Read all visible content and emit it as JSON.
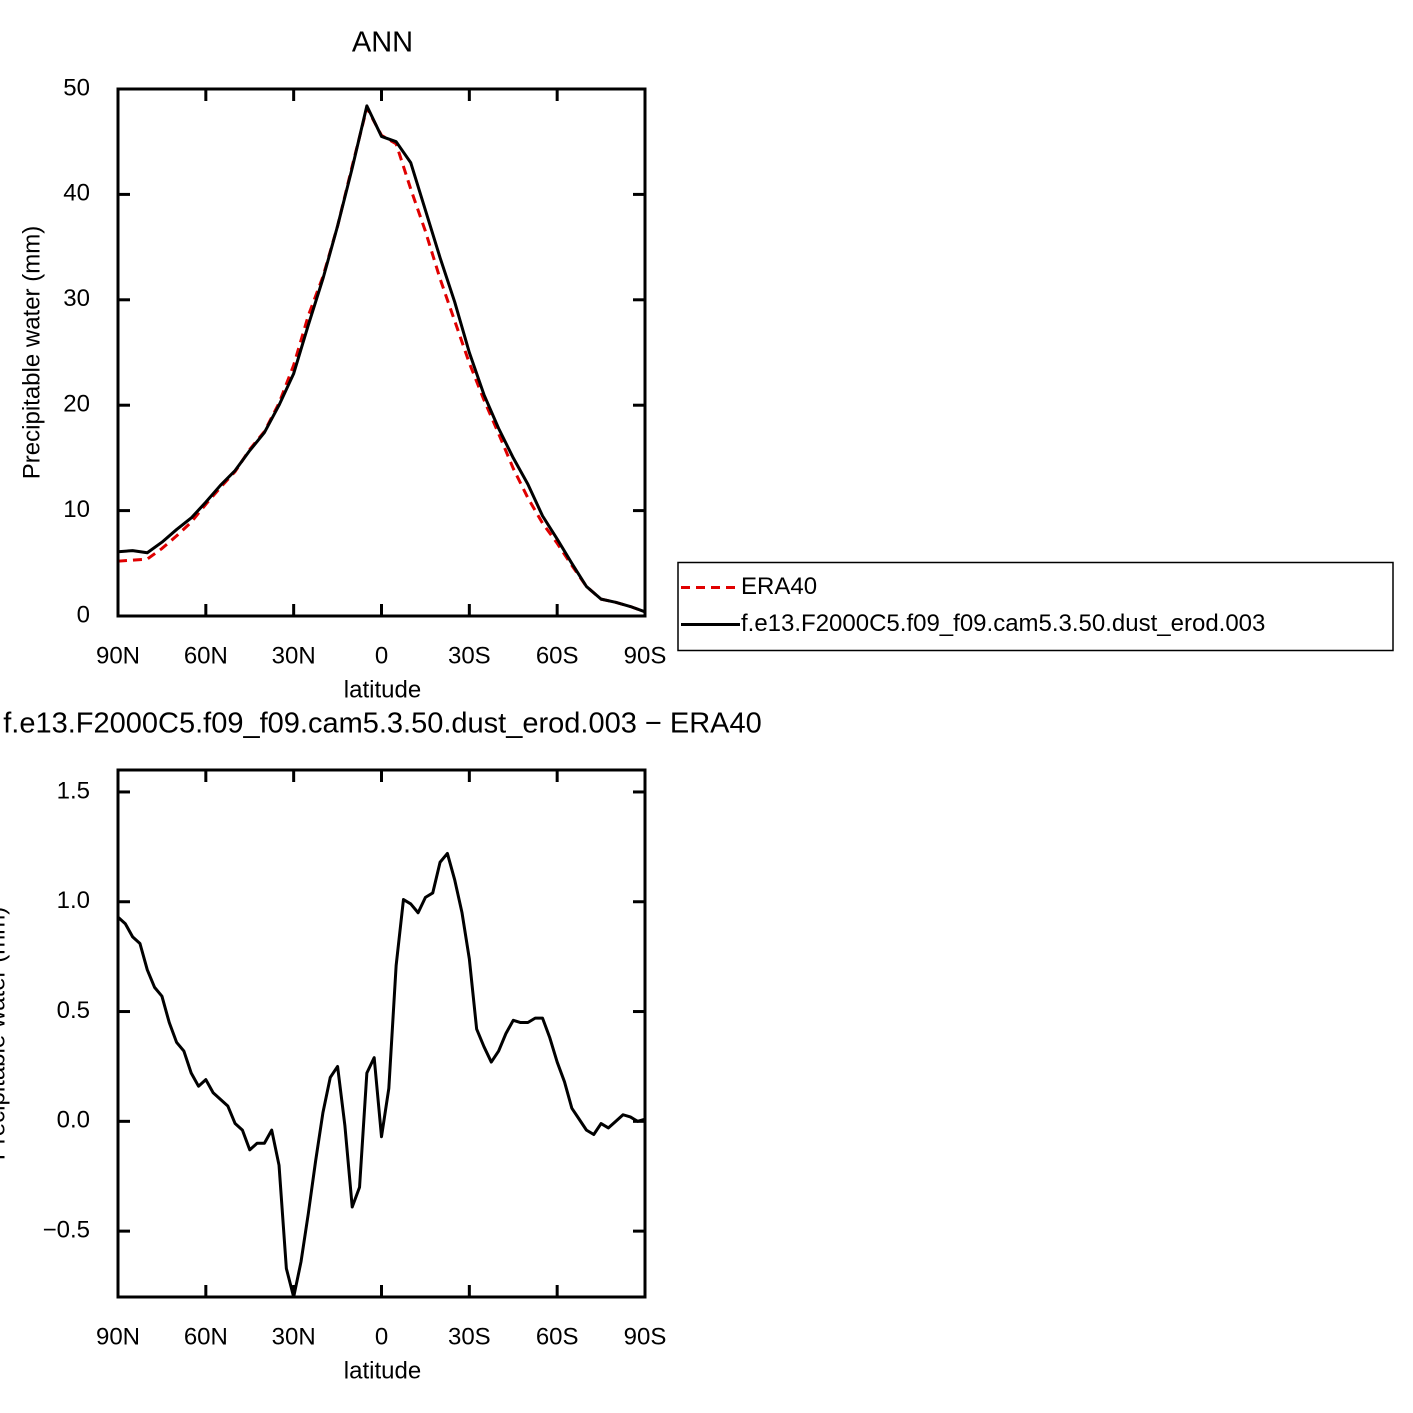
{
  "chart_data": [
    {
      "type": "line",
      "title": "ANN",
      "xlabel": "latitude",
      "ylabel": "Precipitable water (mm)",
      "x": [
        90,
        85,
        80,
        75,
        70,
        65,
        60,
        55,
        50,
        45,
        40,
        35,
        30,
        25,
        20,
        15,
        10,
        5,
        0,
        -5,
        -10,
        -15,
        -20,
        -25,
        -30,
        -35,
        -40,
        -45,
        -50,
        -55,
        -60,
        -65,
        -70,
        -75,
        -80,
        -85,
        -90
      ],
      "series": [
        {
          "name": "ERA40",
          "color": "#e00000",
          "linestyle": "dashed",
          "values": [
            5.2,
            5.3,
            5.4,
            6.4,
            7.6,
            8.9,
            10.6,
            12.2,
            13.7,
            15.8,
            17.5,
            20.2,
            23.8,
            28.5,
            32.2,
            37.0,
            42.7,
            48.2,
            45.6,
            44.8,
            40.5,
            36.5,
            32.0,
            28.0,
            24.0,
            20.5,
            17.3,
            14.0,
            11.2,
            8.8,
            6.9,
            4.8,
            2.8,
            1.6,
            1.3,
            0.9,
            0.4
          ]
        },
        {
          "name": "f.e13.F2000C5.f09_f09.cam5.3.50.dust_erod.003",
          "color": "#000000",
          "linestyle": "solid",
          "values": [
            6.1,
            6.2,
            6.0,
            7.0,
            8.2,
            9.3,
            10.8,
            12.4,
            13.8,
            15.7,
            17.4,
            20.0,
            23.0,
            27.6,
            32.0,
            37.0,
            42.5,
            48.4,
            45.5,
            45.0,
            43.0,
            38.5,
            34.0,
            29.8,
            25.0,
            21.0,
            17.8,
            15.0,
            12.5,
            9.5,
            7.3,
            5.0,
            2.8,
            1.6,
            1.3,
            0.9,
            0.4
          ]
        }
      ],
      "xlim": [
        90,
        -90
      ],
      "xticks": [
        {
          "value": 90,
          "label": "90N"
        },
        {
          "value": 60,
          "label": "60N"
        },
        {
          "value": 30,
          "label": "30N"
        },
        0,
        {
          "value": -30,
          "label": "30S"
        },
        {
          "value": -60,
          "label": "60S"
        },
        {
          "value": -90,
          "label": "90S"
        }
      ],
      "ylim": [
        0,
        50
      ],
      "yticks": [
        0,
        10,
        20,
        30,
        40,
        50
      ],
      "legend": "right"
    },
    {
      "type": "line",
      "title": "f.e13.F2000C5.f09_f09.cam5.3.50.dust_erod.003 − ERA40",
      "xlabel": "latitude",
      "ylabel": "Precipitable water (mm)",
      "x": [
        90,
        87.5,
        85,
        82.5,
        80,
        77.5,
        75,
        72.5,
        70,
        67.5,
        65,
        62.5,
        60,
        57.5,
        55,
        52.5,
        50,
        47.5,
        45,
        42.5,
        40,
        37.5,
        35,
        32.5,
        30,
        27.5,
        25,
        22.5,
        20,
        17.5,
        15,
        12.5,
        10,
        7.5,
        5,
        2.5,
        0,
        -2.5,
        -5,
        -7.5,
        -10,
        -12.5,
        -15,
        -17.5,
        -20,
        -22.5,
        -25,
        -27.5,
        -30,
        -32.5,
        -35,
        -37.5,
        -40,
        -42.5,
        -45,
        -47.5,
        -50,
        -52.5,
        -55,
        -57.5,
        -60,
        -62.5,
        -65,
        -67.5,
        -70,
        -72.5,
        -75,
        -77.5,
        -80,
        -82.5,
        -85,
        -87.5,
        -90
      ],
      "values": [
        0.93,
        0.9,
        0.84,
        0.81,
        0.69,
        0.61,
        0.57,
        0.45,
        0.36,
        0.32,
        0.22,
        0.16,
        0.19,
        0.13,
        0.1,
        0.07,
        -0.01,
        -0.04,
        -0.13,
        -0.1,
        -0.1,
        -0.04,
        -0.2,
        -0.67,
        -0.8,
        -0.64,
        -0.42,
        -0.18,
        0.04,
        0.2,
        0.25,
        -0.02,
        -0.39,
        -0.3,
        0.22,
        0.29,
        -0.07,
        0.15,
        0.71,
        1.01,
        0.99,
        0.95,
        1.02,
        1.04,
        1.18,
        1.22,
        1.1,
        0.95,
        0.74,
        0.42,
        0.34,
        0.27,
        0.32,
        0.4,
        0.46,
        0.45,
        0.45,
        0.47,
        0.47,
        0.38,
        0.27,
        0.18,
        0.06,
        0.01,
        -0.04,
        -0.06,
        -0.01,
        -0.03,
        0.0,
        0.03,
        0.02,
        0.0,
        0.01
      ],
      "color": "#000000",
      "xlim": [
        90,
        -90
      ],
      "xticks": [
        {
          "value": 90,
          "label": "90N"
        },
        {
          "value": 60,
          "label": "60N"
        },
        {
          "value": 30,
          "label": "30N"
        },
        0,
        {
          "value": -30,
          "label": "30S"
        },
        {
          "value": -60,
          "label": "60S"
        },
        {
          "value": -90,
          "label": "90S"
        }
      ],
      "ylim": [
        -0.8,
        1.6
      ],
      "yticks": [
        {
          "value": -0.5,
          "label": "−0.5"
        },
        {
          "value": 0,
          "label": "0.0"
        },
        {
          "value": 0.5,
          "label": "0.5"
        },
        {
          "value": 1,
          "label": "1.0"
        },
        {
          "value": 1.5,
          "label": "1.5"
        }
      ]
    }
  ]
}
